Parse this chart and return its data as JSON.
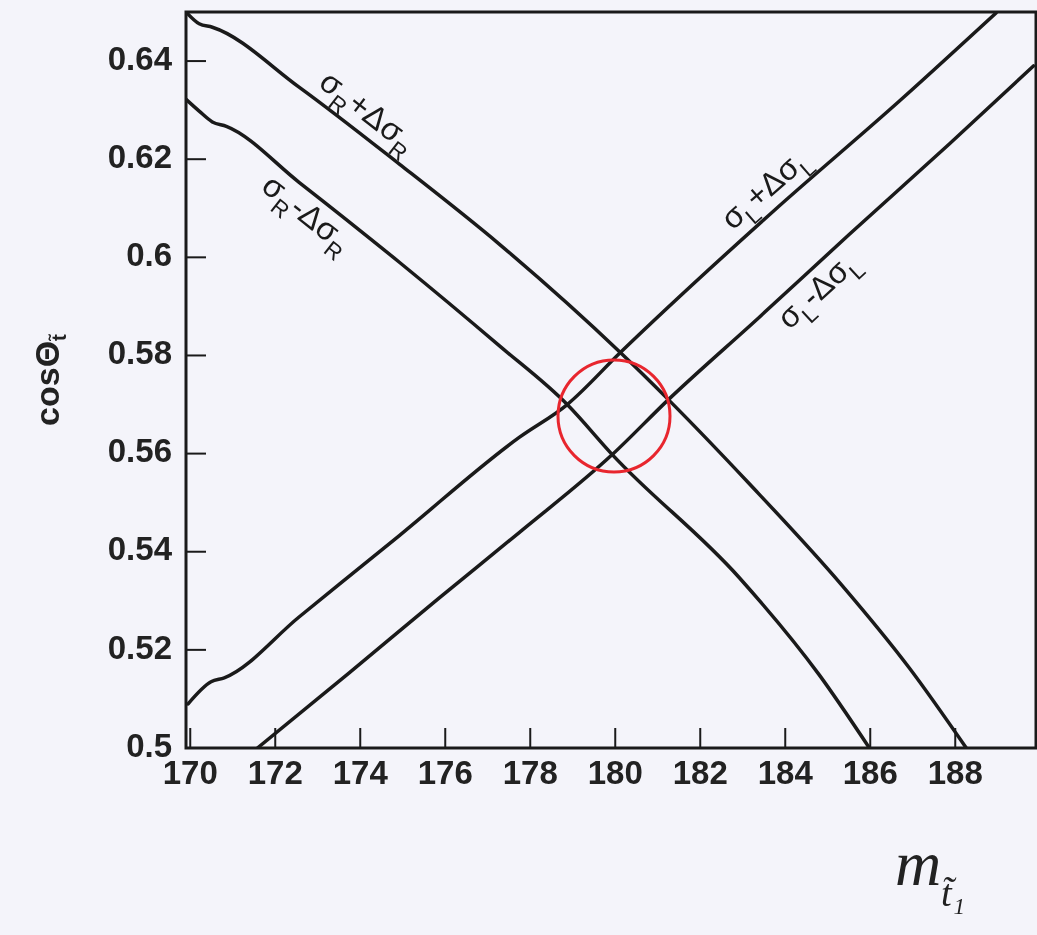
{
  "chart_data": {
    "type": "line",
    "xlabel": "m$_{t̃₁}$",
    "ylabel": "cosΘ$_{t̃}$",
    "xlim": [
      169.9,
      189.9
    ],
    "ylim": [
      0.5,
      0.65
    ],
    "xticks": [
      170,
      172,
      174,
      176,
      178,
      180,
      182,
      184,
      186,
      188
    ],
    "yticks": [
      0.5,
      0.52,
      0.54,
      0.56,
      0.58,
      0.6,
      0.62,
      0.64
    ],
    "grid": false,
    "marker": "none",
    "line_style": "solid",
    "series": [
      {
        "name": "σ$_{R}$+Δσ$_{R}$",
        "color": "#1a1a1a",
        "x": [
          169.9,
          170.21,
          170.52,
          172.56,
          174.92,
          177.27,
          180.12,
          181.25,
          183.15,
          185.32,
          186.92,
          188.26
        ],
        "values": [
          0.65,
          0.6476,
          0.6469,
          0.6347,
          0.619,
          0.6027,
          0.5806,
          0.571,
          0.5539,
          0.5333,
          0.5163,
          0.5
        ]
      },
      {
        "name": "σ$_{R}$-Δσ$_{R}$",
        "color": "#1a1a1a",
        "x": [
          169.9,
          170.21,
          170.52,
          170.85,
          172.56,
          174.92,
          177.27,
          178.87,
          179.93,
          182.92,
          184.8,
          185.98
        ],
        "values": [
          0.6322,
          0.6298,
          0.6276,
          0.6267,
          0.6153,
          0.599,
          0.582,
          0.57,
          0.5598,
          0.5347,
          0.5149,
          0.5
        ]
      },
      {
        "name": "σ$_{L}$+Δσ$_{L}$",
        "color": "#1a1a1a",
        "x": [
          169.95,
          170.49,
          170.8,
          172.56,
          174.92,
          177.74,
          178.87,
          180.12,
          183.72,
          186.68,
          188.96
        ],
        "values": [
          0.509,
          0.5135,
          0.5143,
          0.5267,
          0.5433,
          0.5633,
          0.57,
          0.5806,
          0.6094,
          0.6318,
          0.6498
        ]
      },
      {
        "name": "σ$_{L}$-Δσ$_{L}$",
        "color": "#1a1a1a",
        "x": [
          171.58,
          173.74,
          175.86,
          177.74,
          179.93,
          181.25,
          183.39,
          185.51,
          187.86,
          189.84
        ],
        "values": [
          0.5,
          0.5153,
          0.5306,
          0.5439,
          0.5598,
          0.571,
          0.5878,
          0.6047,
          0.6231,
          0.639
        ]
      }
    ]
  }
}
